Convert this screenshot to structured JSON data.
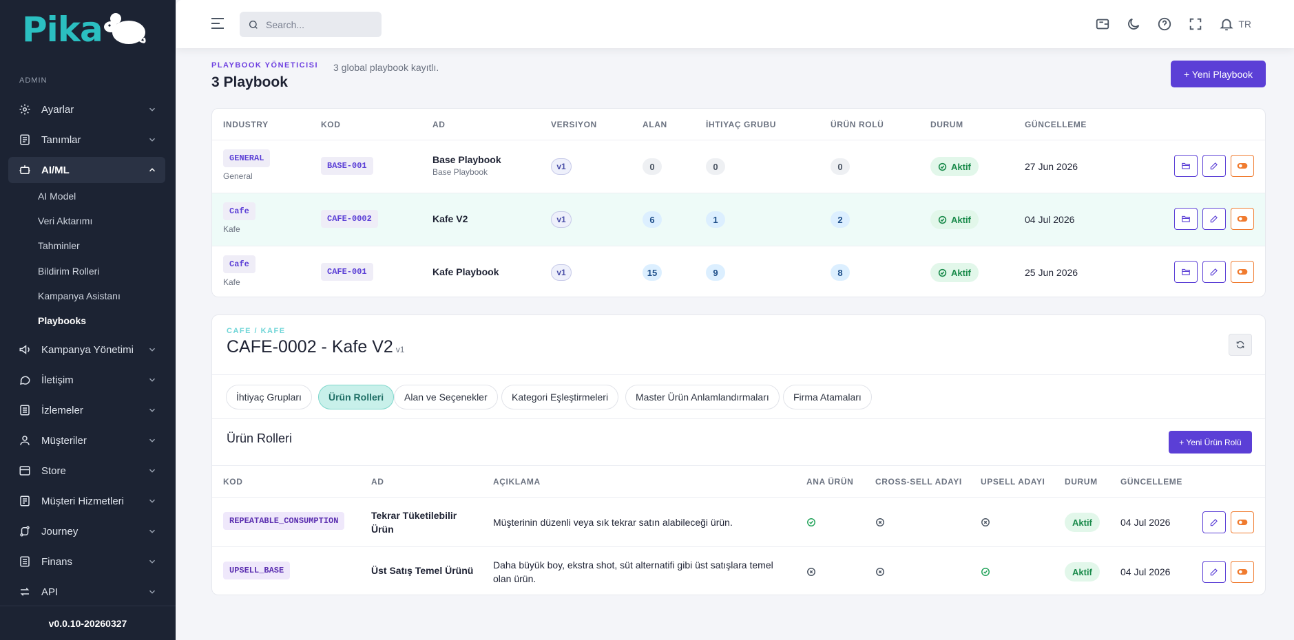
{
  "app": {
    "logo_text": "Pika",
    "version": "v0.0.10-20260327"
  },
  "sidebar": {
    "section_label": "ADMIN",
    "items": [
      {
        "label": "Ayarlar",
        "icon": "gear-icon"
      },
      {
        "label": "Tanımlar",
        "icon": "list-icon"
      },
      {
        "label": "AI/ML",
        "icon": "robot-icon",
        "expanded": true
      },
      {
        "label": "Kampanya Yönetimi",
        "icon": "megaphone-icon"
      },
      {
        "label": "İletişim",
        "icon": "chat-icon"
      },
      {
        "label": "İzlemeler",
        "icon": "report-icon"
      },
      {
        "label": "Müşteriler",
        "icon": "user-icon"
      },
      {
        "label": "Store",
        "icon": "store-icon"
      },
      {
        "label": "Müşteri Hizmetleri",
        "icon": "support-icon"
      },
      {
        "label": "Journey",
        "icon": "route-icon"
      },
      {
        "label": "Finans",
        "icon": "finance-icon"
      },
      {
        "label": "API",
        "icon": "api-icon"
      }
    ],
    "ai_sub_items": [
      "AI Model",
      "Veri Aktarımı",
      "Tahminler",
      "Bildirim Rolleri",
      "Kampanya Asistanı",
      "Playbooks"
    ],
    "active_sub": "Playbooks"
  },
  "topbar": {
    "search_placeholder": "Search...",
    "lang": "TR"
  },
  "header": {
    "eyebrow": "PLAYBOOK YÖNETICISI",
    "description": "3 global playbook kayıtlı.",
    "title": "3 Playbook",
    "new_button": "+ Yeni Playbook"
  },
  "playbooks": {
    "columns": [
      "INDUSTRY",
      "KOD",
      "AD",
      "VERSIYON",
      "ALAN",
      "İHTIYAÇ GRUBU",
      "ÜRÜN ROLÜ",
      "DURUM",
      "GÜNCELLEME"
    ],
    "rows": [
      {
        "industry": "GENERAL",
        "industry_sub": "General",
        "code": "BASE-001",
        "name": "Base Playbook",
        "name_sub": "Base Playbook",
        "version": "v1",
        "alan": "0",
        "ihtiyac": "0",
        "urun_rolu": "0",
        "status": "Aktif",
        "updated": "27 Jun 2026"
      },
      {
        "industry": "Cafe",
        "industry_sub": "Kafe",
        "code": "CAFE-0002",
        "name": "Kafe V2",
        "name_sub": "",
        "version": "v1",
        "alan": "6",
        "ihtiyac": "1",
        "urun_rolu": "2",
        "status": "Aktif",
        "updated": "04 Jul 2026"
      },
      {
        "industry": "Cafe",
        "industry_sub": "Kafe",
        "code": "CAFE-001",
        "name": "Kafe Playbook",
        "name_sub": "",
        "version": "v1",
        "alan": "15",
        "ihtiyac": "9",
        "urun_rolu": "8",
        "status": "Aktif",
        "updated": "25 Jun 2026"
      }
    ]
  },
  "detail": {
    "eyebrow": "CAFE / KAFE",
    "title": "CAFE-0002 - Kafe V2",
    "version": "v1",
    "tabs": [
      "İhtiyaç Grupları",
      "Ürün Rolleri",
      "Alan ve Seçenekler",
      "Kategori Eşleştirmeleri",
      "Master Ürün Anlamlandırmaları",
      "Firma Atamaları"
    ],
    "active_tab": "Ürün Rolleri",
    "section_title": "Ürün Rolleri",
    "new_role_button": "+ Yeni Ürün Rolü",
    "columns": [
      "KOD",
      "AD",
      "AÇIKLAMA",
      "ANA ÜRÜN",
      "CROSS-SELL ADAYI",
      "UPSELL ADAYI",
      "DURUM",
      "GÜNCELLEME"
    ],
    "rows": [
      {
        "code": "REPEATABLE_CONSUMPTION",
        "name": "Tekrar Tüketilebilir Ürün",
        "description": "Müşterinin düzenli veya sık tekrar satın alabileceği ürün.",
        "ana_urun": true,
        "cross_sell": false,
        "upsell": false,
        "status": "Aktif",
        "updated": "04 Jul 2026"
      },
      {
        "code": "UPSELL_BASE",
        "name": "Üst Satış Temel Ürünü",
        "description": "Daha büyük boy, ekstra shot, süt alternatifi gibi üst satışlara temel olan ürün.",
        "ana_urun": false,
        "cross_sell": false,
        "upsell": true,
        "status": "Aktif",
        "updated": "04 Jul 2026"
      }
    ]
  },
  "colors": {
    "sidebar_bg": "#1c2333",
    "accent": "#5b3fd6",
    "teal": "#2bbfc1",
    "success": "#198a4a",
    "danger_outline": "#f07b2f"
  }
}
